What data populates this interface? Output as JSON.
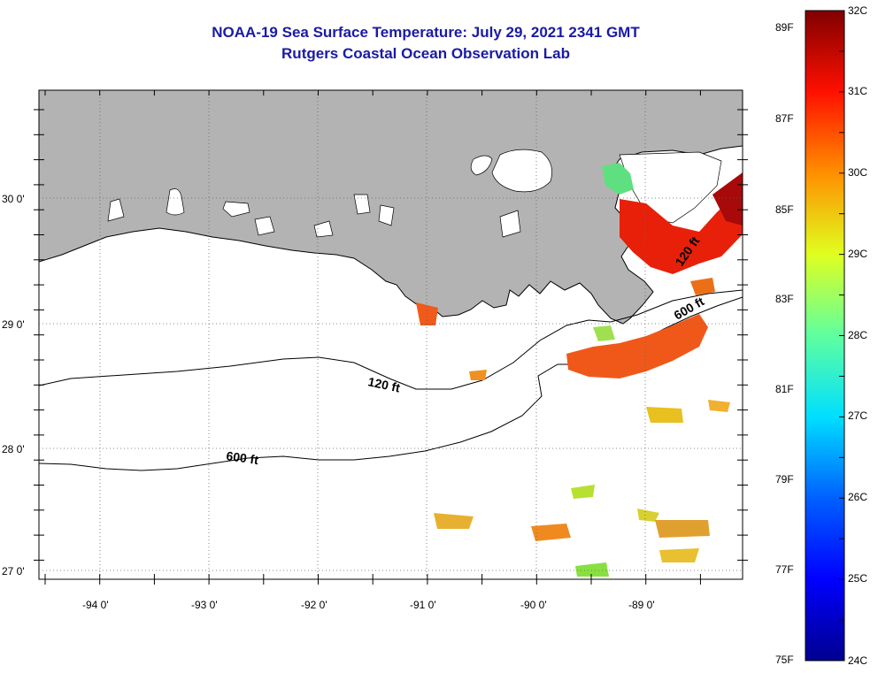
{
  "title": "NOAA-19 Sea Surface Temperature:  July 29, 2021 2341 GMT",
  "subtitle": "Rutgers Coastal Ocean Observation Lab",
  "x_axis_labels": [
    "-94 0'",
    "-93 0'",
    "-92 0'",
    "-91 0'",
    "-90 0'",
    "-89 0'"
  ],
  "y_axis_labels": [
    "30 0'",
    "29 0'",
    "28 0'",
    "27 0'"
  ],
  "contour_labels": [
    "120 ft",
    "600 ft",
    "120 ft",
    "600 ft"
  ],
  "colorbar": {
    "celsius_labels": [
      "32C",
      "31C",
      "30C",
      "29C",
      "28C",
      "27C",
      "26C",
      "25C",
      "24C"
    ],
    "fahrenheit_labels": [
      "89F",
      "87F",
      "85F",
      "83F",
      "81F",
      "79F",
      "77F",
      "75F"
    ],
    "range_c": [
      24,
      32
    ],
    "colormap": "jet"
  },
  "colors": {
    "land": "#b3b3b3",
    "ocean_no_data": "#ffffff",
    "title": "#1a1aa6"
  }
}
